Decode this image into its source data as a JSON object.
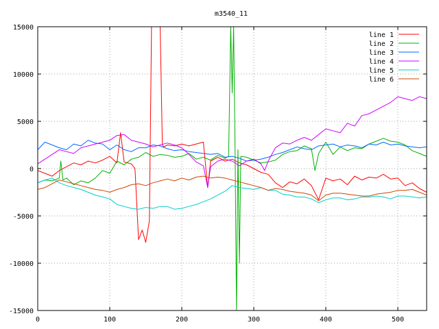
{
  "chart_data": {
    "type": "line",
    "title": "m3540_11",
    "xlabel": "",
    "ylabel": "",
    "xlim": [
      0,
      540
    ],
    "ylim": [
      -15000,
      15000
    ],
    "grid": true,
    "legend_position": "top-right",
    "x_ticks": [
      0,
      100,
      200,
      300,
      400,
      500
    ],
    "y_ticks": [
      -15000,
      -10000,
      -5000,
      0,
      5000,
      10000,
      15000
    ],
    "series": [
      {
        "name": "line 1",
        "color": "#ff0000",
        "x": [
          0,
          10,
          20,
          30,
          40,
          50,
          60,
          70,
          80,
          90,
          100,
          110,
          115,
          120,
          130,
          135,
          140,
          145,
          150,
          155,
          158,
          160,
          165,
          170,
          173,
          175,
          180,
          190,
          200,
          210,
          220,
          230,
          236,
          240,
          250,
          260,
          270,
          280,
          290,
          300,
          310,
          320,
          330,
          340,
          350,
          360,
          370,
          380,
          390,
          400,
          410,
          420,
          430,
          440,
          450,
          460,
          470,
          480,
          490,
          500,
          510,
          520,
          530,
          540
        ],
        "y": [
          -200,
          -500,
          -800,
          -200,
          200,
          600,
          400,
          800,
          600,
          900,
          1300,
          600,
          3800,
          700,
          500,
          0,
          -7500,
          -6500,
          -7800,
          -5500,
          15000,
          15000,
          15000,
          15000,
          2500,
          2300,
          2500,
          2400,
          2600,
          2400,
          2600,
          2800,
          -2000,
          800,
          1200,
          800,
          1000,
          600,
          400,
          0,
          -400,
          -600,
          -1500,
          -2000,
          -1400,
          -1600,
          -1100,
          -1800,
          -3300,
          -1000,
          -1300,
          -1100,
          -1700,
          -800,
          -1200,
          -900,
          -1000,
          -600,
          -1100,
          -1000,
          -1800,
          -1500,
          -2100,
          -2500
        ]
      },
      {
        "name": "line 2",
        "color": "#00b000",
        "x": [
          0,
          10,
          20,
          30,
          32,
          35,
          40,
          50,
          60,
          70,
          80,
          90,
          100,
          110,
          120,
          130,
          140,
          150,
          160,
          170,
          180,
          190,
          200,
          210,
          220,
          230,
          240,
          250,
          260,
          265,
          268,
          270,
          272,
          274,
          276,
          278,
          280,
          282,
          290,
          300,
          310,
          320,
          330,
          340,
          350,
          360,
          370,
          380,
          385,
          390,
          400,
          410,
          420,
          430,
          440,
          450,
          460,
          470,
          480,
          490,
          500,
          510,
          520,
          530,
          540
        ],
        "y": [
          -1500,
          -1200,
          -1300,
          -1000,
          800,
          -1200,
          -1000,
          -1700,
          -1300,
          -1500,
          -1000,
          -200,
          -500,
          800,
          400,
          1000,
          1200,
          1700,
          1300,
          1500,
          1400,
          1200,
          1300,
          1600,
          1000,
          1200,
          900,
          1400,
          1100,
          1300,
          15000,
          8000,
          15000,
          2000,
          -15000,
          2000,
          -10000,
          1300,
          1200,
          900,
          600,
          700,
          900,
          1500,
          1800,
          1900,
          2400,
          2100,
          -200,
          1600,
          2800,
          1500,
          2300,
          1900,
          2200,
          2100,
          2600,
          2900,
          3200,
          2900,
          2800,
          2500,
          1900,
          1600,
          1300
        ]
      },
      {
        "name": "line 3",
        "color": "#0066ff",
        "x": [
          0,
          10,
          20,
          30,
          40,
          50,
          60,
          70,
          80,
          90,
          100,
          110,
          120,
          130,
          140,
          150,
          160,
          170,
          180,
          190,
          200,
          210,
          220,
          230,
          240,
          250,
          260,
          270,
          280,
          290,
          300,
          310,
          320,
          330,
          340,
          350,
          360,
          370,
          380,
          390,
          400,
          410,
          420,
          430,
          440,
          450,
          460,
          470,
          480,
          490,
          500,
          510,
          520,
          530,
          540
        ],
        "y": [
          2000,
          2800,
          2500,
          2200,
          2000,
          2600,
          2400,
          3000,
          2700,
          2600,
          2000,
          2500,
          2000,
          1800,
          2200,
          2200,
          2500,
          2400,
          2100,
          1900,
          2000,
          1800,
          1700,
          1600,
          1500,
          1600,
          1200,
          1300,
          1100,
          800,
          900,
          1000,
          1200,
          1500,
          1700,
          2000,
          2300,
          2100,
          2000,
          2400,
          2500,
          2600,
          2300,
          2500,
          2400,
          2200,
          2600,
          2500,
          2800,
          2500,
          2600,
          2400,
          2300,
          2200,
          2300
        ]
      },
      {
        "name": "line 4",
        "color": "#cc00ff",
        "x": [
          0,
          10,
          20,
          30,
          40,
          50,
          60,
          70,
          80,
          90,
          100,
          110,
          120,
          130,
          140,
          150,
          160,
          170,
          180,
          190,
          200,
          210,
          220,
          230,
          236,
          240,
          250,
          260,
          270,
          280,
          290,
          300,
          310,
          315,
          320,
          330,
          340,
          350,
          360,
          370,
          380,
          390,
          400,
          410,
          420,
          430,
          440,
          450,
          460,
          470,
          480,
          490,
          500,
          510,
          520,
          530,
          540
        ],
        "y": [
          500,
          1000,
          1500,
          2000,
          1800,
          1600,
          2200,
          2400,
          2600,
          2800,
          3000,
          3500,
          3600,
          3000,
          2800,
          2600,
          2300,
          2500,
          2700,
          2500,
          2200,
          1500,
          700,
          300,
          -2000,
          200,
          800,
          1000,
          800,
          300,
          800,
          1000,
          500,
          -200,
          800,
          2200,
          2700,
          2600,
          3000,
          3300,
          3000,
          3600,
          4200,
          4000,
          3800,
          4800,
          4500,
          5600,
          5800,
          6200,
          6600,
          7000,
          7600,
          7400,
          7200,
          7600,
          7400
        ]
      },
      {
        "name": "line 5",
        "color": "#00cccc",
        "x": [
          0,
          10,
          20,
          30,
          40,
          50,
          60,
          70,
          80,
          90,
          100,
          110,
          120,
          130,
          140,
          150,
          160,
          170,
          180,
          190,
          200,
          210,
          220,
          230,
          240,
          250,
          260,
          270,
          280,
          290,
          300,
          310,
          320,
          330,
          340,
          350,
          360,
          370,
          380,
          390,
          400,
          410,
          420,
          430,
          440,
          450,
          460,
          470,
          480,
          490,
          500,
          510,
          520,
          530,
          540
        ],
        "y": [
          -1500,
          -1200,
          -1000,
          -1500,
          -1800,
          -2000,
          -2200,
          -2500,
          -2800,
          -3000,
          -3200,
          -3800,
          -4000,
          -4200,
          -4300,
          -4100,
          -4200,
          -4000,
          -4000,
          -4300,
          -4200,
          -4000,
          -3800,
          -3500,
          -3200,
          -2800,
          -2400,
          -1800,
          -2000,
          -2100,
          -2200,
          -2000,
          -2300,
          -2300,
          -2700,
          -2800,
          -3000,
          -3000,
          -3200,
          -3600,
          -3300,
          -3100,
          -3100,
          -3300,
          -3200,
          -3000,
          -3000,
          -2900,
          -3000,
          -3200,
          -2900,
          -2900,
          -3000,
          -3100,
          -3000
        ]
      },
      {
        "name": "line 6",
        "color": "#cc4400",
        "x": [
          0,
          10,
          20,
          30,
          40,
          50,
          60,
          70,
          80,
          90,
          100,
          110,
          120,
          130,
          140,
          150,
          160,
          170,
          180,
          190,
          200,
          210,
          220,
          230,
          240,
          250,
          260,
          270,
          280,
          290,
          300,
          310,
          320,
          330,
          340,
          350,
          360,
          370,
          380,
          390,
          400,
          410,
          420,
          430,
          440,
          450,
          460,
          470,
          480,
          490,
          500,
          510,
          520,
          530,
          540
        ],
        "y": [
          -2200,
          -2000,
          -1600,
          -1200,
          -1400,
          -1600,
          -1800,
          -2000,
          -2200,
          -2300,
          -2500,
          -2200,
          -2000,
          -1700,
          -1600,
          -1800,
          -1500,
          -1300,
          -1100,
          -1300,
          -1000,
          -1200,
          -900,
          -800,
          -1000,
          -900,
          -1000,
          -1200,
          -1400,
          -1600,
          -1800,
          -2000,
          -2300,
          -2100,
          -2200,
          -2400,
          -2500,
          -2600,
          -2800,
          -3400,
          -2800,
          -2600,
          -2600,
          -2700,
          -2800,
          -2900,
          -2900,
          -2700,
          -2600,
          -2500,
          -2300,
          -2300,
          -2200,
          -2500,
          -2800
        ]
      }
    ]
  }
}
